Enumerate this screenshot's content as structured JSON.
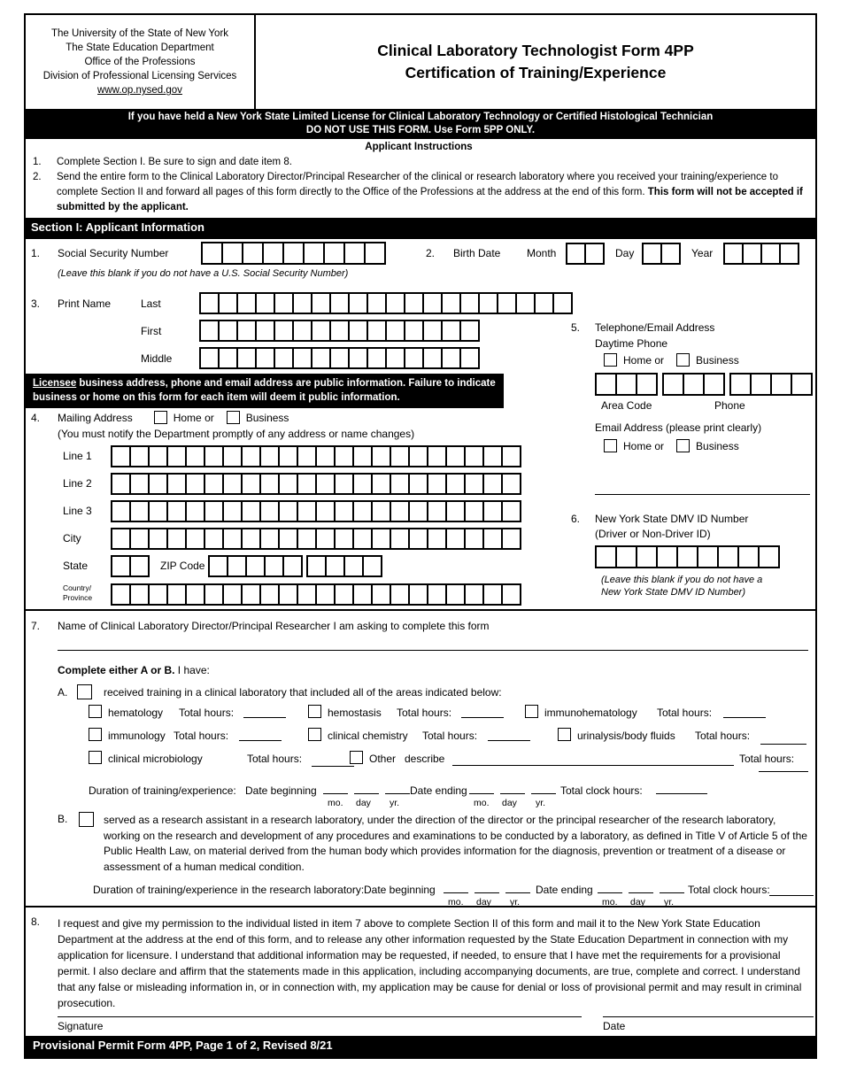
{
  "header": {
    "org_line1": "The University of the State of New York",
    "org_line2": "The State Education Department",
    "org_line3": "Office of the Professions",
    "org_line4": "Division of Professional Licensing Services",
    "website": "www.op.nysed.gov",
    "title_line1": "Clinical Laboratory Technologist Form 4PP",
    "title_line2": "Certification of Training/Experience"
  },
  "warning": {
    "line1": "If you have held a New York State Limited License for Clinical Laboratory Technology or Certified Histological Technician",
    "line2": "DO NOT USE THIS FORM. Use Form 5PP ONLY."
  },
  "instructions": {
    "title": "Applicant Instructions",
    "item1_num": "1.",
    "item1_text": "Complete Section I. Be sure to sign and date item 8.",
    "item2_num": "2.",
    "item2_text": "Send the entire form to the Clinical Laboratory Director/Principal Researcher of the clinical or research laboratory where you received your training/experience to complete Section II and forward all pages of this form directly to the Office of the Professions at the address at the end of this form. ",
    "item2_bold": "This form will not be accepted if submitted by the applicant."
  },
  "section1": {
    "bar": "Section I: Applicant Information",
    "ssn_num": "1.",
    "ssn_label": "Social Security Number",
    "ssn_boxes": 9,
    "ssn_note": "(Leave this blank if you do not have a U.S. Social Security Number)",
    "birth_num": "2.",
    "birth_label": "Birth Date",
    "month_label": "Month",
    "month_boxes": 2,
    "day_label": "Day",
    "day_boxes": 2,
    "year_label": "Year",
    "year_boxes": 4,
    "name_num": "3.",
    "name_label": "Print Name",
    "last_label": "Last",
    "last_boxes": 20,
    "first_label": "First",
    "first_boxes": 15,
    "middle_label": "Middle",
    "middle_boxes": 15,
    "notice_underlined": "Licensee",
    "notice_rest": " business address, phone and email address are public information. Failure to indicate business or home on this form for each item will deem it public information.",
    "mail_num": "4.",
    "mail_label": "Mailing Address",
    "mail_home": "Home or",
    "mail_business": "Business",
    "mail_note": "(You must notify the Department promptly of any address or name changes)",
    "addr_line1": "Line 1",
    "addr_line2": "Line 2",
    "addr_line3": "Line 3",
    "addr_city": "City",
    "addr_boxes": 22,
    "state_label": "State",
    "state_boxes": 2,
    "zip_label": "ZIP Code",
    "zip_boxes_a": 5,
    "zip_boxes_b": 4,
    "country_line1": "Country/",
    "country_line2": "Province",
    "country_boxes": 22,
    "phone_num": "5.",
    "phone_label": "Telephone/Email Address",
    "daytime_label": "Daytime Phone",
    "phone_home": "Home or",
    "phone_business": "Business",
    "area_boxes": 3,
    "phone_boxes_a": 3,
    "phone_boxes_b": 4,
    "area_label": "Area Code",
    "phone_sub_label": "Phone",
    "email_label": "Email Address (please print clearly)",
    "email_home": "Home or",
    "email_business": "Business",
    "dmv_num": "6.",
    "dmv_label": "New York State DMV ID Number",
    "dmv_sublabel": "(Driver or Non-Driver ID)",
    "dmv_boxes": 9,
    "dmv_note1": "(Leave this blank if you do not have a",
    "dmv_note2": "New York State DMV ID Number)"
  },
  "section7": {
    "num": "7.",
    "label": "Name of Clinical Laboratory Director/Principal Researcher I am asking to complete this form",
    "ab_bold": "Complete either A or B.",
    "ab_rest": " I have:",
    "a_num": "A.",
    "a_intro": "received training in a clinical laboratory that included all of the areas indicated below:",
    "total_hours": "Total hours:",
    "area_hematology": "hematology",
    "area_hemostasis": "hemostasis",
    "area_immunohematology": "immunohematology",
    "area_immunology": "immunology",
    "area_clinical_chemistry": "clinical chemistry",
    "area_urinalysis": "urinalysis/body fluids",
    "area_clinical_microbiology": "clinical microbiology",
    "other_label": "Other",
    "describe_label": "describe",
    "a_duration_label": "Duration of training/experience:",
    "date_beginning": "Date beginning",
    "date_ending": "Date ending",
    "mo": "mo.",
    "day": "day",
    "yr": "yr.",
    "total_clock": "Total clock hours:",
    "b_num": "B.",
    "b_text": "served as a research assistant in a research laboratory, under the direction of the director or the principal researcher of the research laboratory, working on the research and development of any procedures and examinations to be conducted by a laboratory, as defined in Title V of Article 5 of the Public Health Law, on material derived from the human body which provides information for the diagnosis, prevention or treatment of a disease or assessment of a human medical condition.",
    "b_duration_label": "Duration of training/experience in the research laboratory:"
  },
  "section8": {
    "num": "8.",
    "text": "I request and give my permission to the individual listed in item 7 above to complete Section II of this form and mail it to the New York State Education Department at the address at the end of this form, and to release any other information requested by the State Education Department in connection with my application for licensure. I understand that additional information may be requested, if needed, to ensure that I have met the requirements for a provisional permit. I also declare and affirm that the statements made in this application, including accompanying documents, are true, complete and correct. I understand that any false or misleading information in, or in connection with, my application may be cause for denial or loss of provisional permit and may result in criminal prosecution.",
    "signature_label": "Signature",
    "date_label": "Date"
  },
  "footer": "Provisional Permit Form 4PP, Page 1 of 2, Revised 8/21"
}
